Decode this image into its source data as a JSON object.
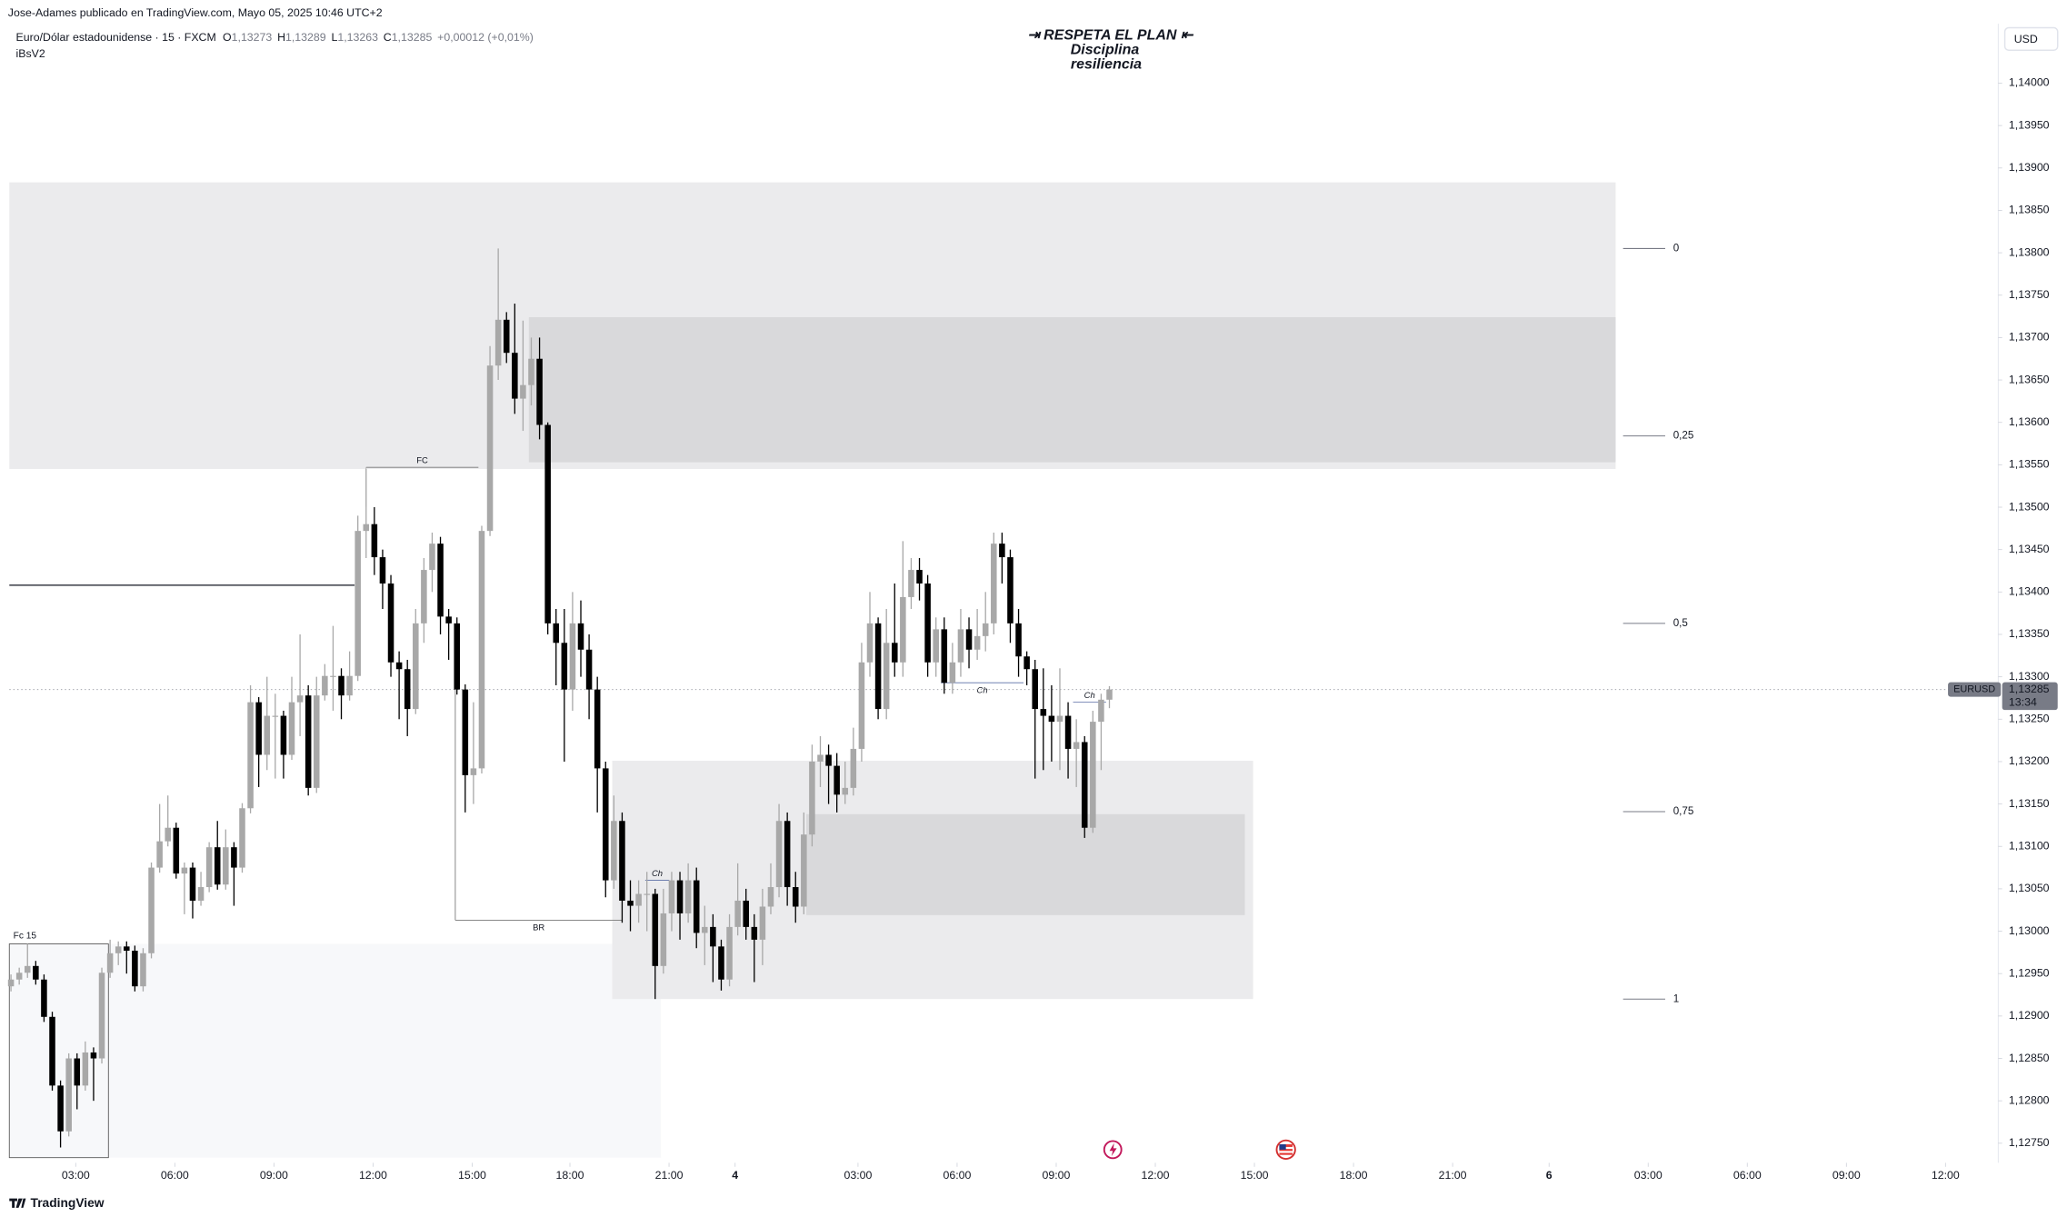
{
  "chart_data": {
    "type": "candlestick",
    "publisher": "Jose-Adames publicado en TradingView.com, Mayo 05, 2025 10:46 UTC+2",
    "title": "Euro/Dólar estadounidense · 15 · FXCM",
    "ohlc_legend": [
      {
        "name": "O",
        "label": "1,13273"
      },
      {
        "name": "H",
        "label": "1,13289"
      },
      {
        "name": "L",
        "label": "1,13263"
      },
      {
        "name": "C",
        "label": "1,13285"
      }
    ],
    "change": "+0,00012 (+0,01%)",
    "indicator": "iBsV2",
    "banner": [
      "⇥ RESPETA  EL PLAN ⇤",
      "Disciplina",
      "resiliencia"
    ],
    "currency": "USD",
    "brand": "TradingView",
    "up_color": "#a8a8a8",
    "down_color": "#000000",
    "x": [
      0,
      1,
      2,
      3,
      4,
      5,
      6,
      7,
      8,
      9,
      10,
      11,
      12,
      13,
      14,
      15,
      16,
      17,
      18,
      19,
      20,
      21,
      22,
      23,
      24,
      25,
      26,
      27,
      28,
      29,
      30,
      31,
      32,
      33,
      34,
      35,
      36,
      37,
      38,
      39,
      40,
      41,
      42,
      43,
      44,
      45,
      46,
      47,
      48,
      49,
      50,
      51,
      52,
      53,
      54,
      55,
      56,
      57,
      58,
      59,
      60,
      61,
      62,
      63,
      64,
      65,
      66,
      67,
      68,
      69,
      70,
      71,
      72,
      73,
      74,
      75,
      76,
      77,
      78,
      79,
      80,
      81,
      82,
      83,
      84,
      85,
      86,
      87,
      88,
      89,
      90,
      91,
      92,
      93,
      94,
      95,
      96,
      97,
      98,
      99,
      100,
      101,
      102,
      103,
      104,
      105,
      106,
      107,
      108,
      109,
      110,
      111,
      112,
      113,
      114,
      115,
      116,
      117,
      118,
      119,
      120,
      121,
      122,
      123,
      124,
      125,
      126,
      127,
      128,
      129,
      130,
      131,
      132,
      133
    ],
    "open": [
      1.12935,
      1.12943,
      1.12951,
      1.12959,
      1.12943,
      1.12899,
      1.12818,
      1.12764,
      1.1285,
      1.12818,
      1.12857,
      1.1285,
      1.12951,
      1.12974,
      1.12982,
      1.12977,
      1.12935,
      1.12974,
      1.13075,
      1.13106,
      1.13122,
      1.13068,
      1.13075,
      1.13036,
      1.13052,
      1.13099,
      1.13055,
      1.13099,
      1.13075,
      1.13145,
      1.1327,
      1.13208,
      1.13254,
      1.13254,
      1.13208,
      1.1327,
      1.13278,
      1.13169,
      1.13278,
      1.13301,
      1.13301,
      1.13278,
      1.13301,
      1.13472,
      1.1348,
      1.13441,
      1.1341,
      1.13317,
      1.13309,
      1.13262,
      1.13363,
      1.13426,
      1.13457,
      1.13371,
      1.13363,
      1.13285,
      1.13184,
      1.13192,
      1.13472,
      1.13667,
      1.13721,
      1.13682,
      1.13628,
      1.13644,
      1.13675,
      1.13597,
      1.13363,
      1.1334,
      1.13285,
      1.13363,
      1.13332,
      1.13285,
      1.13192,
      1.1306,
      1.1313,
      1.13036,
      1.1303,
      1.13044,
      1.13044,
      1.12959,
      1.13021,
      1.1306,
      1.13021,
      1.1306,
      1.12998,
      1.13005,
      1.12982,
      1.12943,
      1.13005,
      1.13036,
      1.13005,
      1.1299,
      1.13029,
      1.13052,
      1.1313,
      1.13052,
      1.13029,
      1.13114,
      1.132,
      1.13208,
      1.13195,
      1.13161,
      1.13169,
      1.13215,
      1.13317,
      1.13363,
      1.13262,
      1.1334,
      1.13317,
      1.13394,
      1.13426,
      1.1341,
      1.13317,
      1.13356,
      1.13293,
      1.13317,
      1.13356,
      1.13332,
      1.13348,
      1.13363,
      1.13457,
      1.13441,
      1.13363,
      1.13324,
      1.13309,
      1.13262,
      1.13254,
      1.13247,
      1.13254,
      1.13215,
      1.13223,
      1.13122,
      1.13247,
      1.13273
    ],
    "high": [
      1.12949,
      1.12957,
      1.12985,
      1.12965,
      1.12949,
      1.12905,
      1.12824,
      1.12856,
      1.12856,
      1.1287,
      1.12863,
      1.12957,
      1.1299,
      1.12988,
      1.12988,
      1.12983,
      1.1298,
      1.13081,
      1.1315,
      1.1316,
      1.13128,
      1.13081,
      1.13081,
      1.1307,
      1.13105,
      1.1313,
      1.1312,
      1.13105,
      1.13151,
      1.1329,
      1.13276,
      1.133,
      1.1328,
      1.1326,
      1.133,
      1.1335,
      1.1329,
      1.133,
      1.13315,
      1.1336,
      1.1331,
      1.1333,
      1.1349,
      1.13545,
      1.135,
      1.1345,
      1.1342,
      1.1333,
      1.1332,
      1.1338,
      1.1344,
      1.1347,
      1.13465,
      1.1338,
      1.1337,
      1.13291,
      1.1327,
      1.13478,
      1.1369,
      1.13805,
      1.1373,
      1.1374,
      1.1372,
      1.137,
      1.137,
      1.136,
      1.1338,
      1.1338,
      1.134,
      1.1339,
      1.1335,
      1.133,
      1.132,
      1.1316,
      1.1314,
      1.1306,
      1.1306,
      1.1307,
      1.1305,
      1.1305,
      1.1307,
      1.1307,
      1.1308,
      1.13075,
      1.1303,
      1.1302,
      1.1299,
      1.1302,
      1.1308,
      1.1305,
      1.1302,
      1.1305,
      1.1308,
      1.1315,
      1.1314,
      1.1307,
      1.1314,
      1.1322,
      1.1323,
      1.1322,
      1.1321,
      1.132,
      1.1324,
      1.1334,
      1.134,
      1.1337,
      1.1338,
      1.1341,
      1.1346,
      1.1344,
      1.1344,
      1.1342,
      1.1337,
      1.1337,
      1.1334,
      1.1338,
      1.1337,
      1.1338,
      1.134,
      1.1347,
      1.1347,
      1.1345,
      1.1338,
      1.1333,
      1.1332,
      1.1331,
      1.1329,
      1.1331,
      1.1327,
      1.1325,
      1.1323,
      1.1326,
      1.1328,
      1.13289
    ],
    "low": [
      1.12929,
      1.12937,
      1.12945,
      1.12937,
      1.12893,
      1.12812,
      1.12745,
      1.12758,
      1.1279,
      1.12812,
      1.128,
      1.12844,
      1.12945,
      1.1296,
      1.1295,
      1.12929,
      1.12929,
      1.12968,
      1.13069,
      1.131,
      1.13062,
      1.1302,
      1.13015,
      1.1303,
      1.13046,
      1.13049,
      1.13049,
      1.1303,
      1.13069,
      1.13139,
      1.1317,
      1.1319,
      1.1318,
      1.1318,
      1.13202,
      1.1323,
      1.1316,
      1.13163,
      1.13272,
      1.1326,
      1.1325,
      1.13272,
      1.13295,
      1.1344,
      1.1342,
      1.1338,
      1.133,
      1.1325,
      1.1323,
      1.13256,
      1.1334,
      1.134,
      1.1335,
      1.1332,
      1.13279,
      1.1314,
      1.1315,
      1.13186,
      1.13466,
      1.1365,
      1.1367,
      1.1361,
      1.1359,
      1.1362,
      1.1358,
      1.1335,
      1.1329,
      1.132,
      1.1326,
      1.133,
      1.1325,
      1.1314,
      1.1304,
      1.1305,
      1.1301,
      1.13,
      1.1301,
      1.13,
      1.1292,
      1.1295,
      1.13,
      1.1299,
      1.1301,
      1.1298,
      1.1296,
      1.1294,
      1.1293,
      1.12935,
      1.12995,
      1.1299,
      1.1294,
      1.1296,
      1.1302,
      1.1304,
      1.1303,
      1.1301,
      1.1302,
      1.131,
      1.1317,
      1.1315,
      1.1314,
      1.1315,
      1.1316,
      1.132,
      1.133,
      1.1325,
      1.1325,
      1.133,
      1.133,
      1.1338,
      1.1339,
      1.133,
      1.133,
      1.1328,
      1.1328,
      1.133,
      1.1331,
      1.1332,
      1.1333,
      1.1335,
      1.1341,
      1.1334,
      1.133,
      1.1329,
      1.1318,
      1.1319,
      1.132,
      1.1319,
      1.1318,
      1.1317,
      1.1311,
      1.13116,
      1.1319,
      1.13263
    ],
    "close": [
      1.12943,
      1.12951,
      1.12959,
      1.12943,
      1.12899,
      1.12818,
      1.12764,
      1.1285,
      1.12818,
      1.12857,
      1.1285,
      1.12951,
      1.12974,
      1.12982,
      1.12977,
      1.12935,
      1.12974,
      1.13075,
      1.13106,
      1.13122,
      1.13068,
      1.13075,
      1.13036,
      1.13052,
      1.13099,
      1.13055,
      1.13099,
      1.13075,
      1.13145,
      1.1327,
      1.13208,
      1.13254,
      1.13254,
      1.13208,
      1.1327,
      1.13278,
      1.13169,
      1.13278,
      1.13301,
      1.13301,
      1.13278,
      1.13301,
      1.13472,
      1.1348,
      1.13441,
      1.1341,
      1.13317,
      1.13309,
      1.13262,
      1.13363,
      1.13426,
      1.13457,
      1.13371,
      1.13363,
      1.13285,
      1.13184,
      1.13192,
      1.13472,
      1.13667,
      1.13721,
      1.13682,
      1.13628,
      1.13644,
      1.13675,
      1.13597,
      1.13363,
      1.1334,
      1.13285,
      1.13363,
      1.13332,
      1.13285,
      1.13192,
      1.1306,
      1.1313,
      1.13036,
      1.1303,
      1.13044,
      1.13044,
      1.12959,
      1.13021,
      1.1306,
      1.13021,
      1.1306,
      1.12998,
      1.13005,
      1.12982,
      1.12943,
      1.13005,
      1.13036,
      1.13005,
      1.1299,
      1.13029,
      1.13052,
      1.1313,
      1.13052,
      1.13029,
      1.13114,
      1.132,
      1.13208,
      1.13195,
      1.13161,
      1.13169,
      1.13215,
      1.13317,
      1.13363,
      1.13262,
      1.1334,
      1.13317,
      1.13394,
      1.13426,
      1.1341,
      1.13317,
      1.13356,
      1.13293,
      1.13317,
      1.13356,
      1.13332,
      1.13348,
      1.13363,
      1.13457,
      1.13441,
      1.13363,
      1.13324,
      1.13309,
      1.13262,
      1.13254,
      1.13247,
      1.13254,
      1.13215,
      1.13223,
      1.13122,
      1.13247,
      1.13273,
      1.13285
    ],
    "xlim": [
      -0.2,
      240.3
    ],
    "ylim": [
      1.1273,
      1.1407
    ],
    "xticks": [
      {
        "value": 7.84,
        "label": "03:00"
      },
      {
        "value": 19.84,
        "label": "06:00"
      },
      {
        "value": 31.84,
        "label": "09:00"
      },
      {
        "value": 43.84,
        "label": "12:00"
      },
      {
        "value": 55.84,
        "label": "15:00"
      },
      {
        "value": 67.68,
        "label": "18:00"
      },
      {
        "value": 79.68,
        "label": "21:00"
      },
      {
        "value": 87.68,
        "label": "4"
      },
      {
        "value": 102.56,
        "label": "03:00"
      },
      {
        "value": 114.56,
        "label": "06:00"
      },
      {
        "value": 126.56,
        "label": "09:00"
      },
      {
        "value": 138.56,
        "label": "12:00"
      },
      {
        "value": 150.56,
        "label": "15:00"
      },
      {
        "value": 162.56,
        "label": "18:00"
      },
      {
        "value": 174.56,
        "label": "21:00"
      },
      {
        "value": 186.24,
        "label": "6"
      },
      {
        "value": 198.24,
        "label": "03:00"
      },
      {
        "value": 210.24,
        "label": "06:00"
      },
      {
        "value": 222.24,
        "label": "09:00"
      },
      {
        "value": 234.24,
        "label": "12:00"
      }
    ],
    "yticks": [
      {
        "value": 1.1275,
        "label": "1,12750"
      },
      {
        "value": 1.128,
        "label": "1,12800"
      },
      {
        "value": 1.1285,
        "label": "1,12850"
      },
      {
        "value": 1.129,
        "label": "1,12900"
      },
      {
        "value": 1.1295,
        "label": "1,12950"
      },
      {
        "value": 1.13,
        "label": "1,13000"
      },
      {
        "value": 1.1305,
        "label": "1,13050"
      },
      {
        "value": 1.131,
        "label": "1,13100"
      },
      {
        "value": 1.1315,
        "label": "1,13150"
      },
      {
        "value": 1.132,
        "label": "1,13200"
      },
      {
        "value": 1.1325,
        "label": "1,13250"
      },
      {
        "value": 1.133,
        "label": "1,13300"
      },
      {
        "value": 1.1335,
        "label": "1,13350"
      },
      {
        "value": 1.134,
        "label": "1,13400"
      },
      {
        "value": 1.1345,
        "label": "1,13450"
      },
      {
        "value": 1.135,
        "label": "1,13500"
      },
      {
        "value": 1.1355,
        "label": "1,13550"
      },
      {
        "value": 1.136,
        "label": "1,13600"
      },
      {
        "value": 1.1365,
        "label": "1,13650"
      },
      {
        "value": 1.137,
        "label": "1,13700"
      },
      {
        "value": 1.1375,
        "label": "1,13750"
      },
      {
        "value": 1.138,
        "label": "1,13800"
      },
      {
        "value": 1.1385,
        "label": "1,13850"
      },
      {
        "value": 1.139,
        "label": "1,13900"
      },
      {
        "value": 1.1395,
        "label": "1,13950"
      },
      {
        "value": 1.14,
        "label": "1,14000"
      }
    ],
    "zones": [
      {
        "x": [
          -0.2,
          194.3
        ],
        "y": [
          1.13545,
          1.13883
        ],
        "color": "#ebebed"
      },
      {
        "x": [
          62.7,
          194.3
        ],
        "y": [
          1.13553,
          1.13724
        ],
        "color": "#d9d9db"
      },
      {
        "x": [
          -0.2,
          78.7
        ],
        "y": [
          1.12733,
          1.12985
        ],
        "color": "#f7f8fa"
      },
      {
        "x": [
          72.8,
          150.4
        ],
        "y": [
          1.1292,
          1.13201
        ],
        "color": "#ebebed"
      },
      {
        "x": [
          96.3,
          149.4
        ],
        "y": [
          1.13019,
          1.13138
        ],
        "color": "#d9d9db"
      }
    ],
    "levels": [
      {
        "x": [
          -0.2,
          41.6
        ],
        "price": 1.13408
      },
      {
        "text": "FC",
        "x": [
          43.0,
          56.6
        ],
        "price": 1.13547
      },
      {
        "text": "BR",
        "x": [
          53.8,
          74.0
        ],
        "price": 1.13013
      },
      {
        "text": "Ch",
        "x": [
          76.8,
          79.7
        ],
        "price": 1.1306
      },
      {
        "text": "Ch",
        "x": [
          112.6,
          122.6
        ],
        "price": 1.13293
      },
      {
        "text": "Ch",
        "x": [
          128.6,
          132.6
        ],
        "price": 1.1327
      }
    ],
    "box": {
      "text": "Fc 15",
      "x": [
        -0.2,
        11.8
      ],
      "y": [
        1.12733,
        1.12985
      ]
    },
    "fib": {
      "x": [
        195.2,
        200.3
      ],
      "levels": [
        {
          "value": 0,
          "label": "0"
        },
        {
          "value": 0.25,
          "label": "0,25"
        },
        {
          "value": 0.5,
          "label": "0,5"
        },
        {
          "value": 0.75,
          "label": "0,75"
        },
        {
          "value": 1,
          "label": "1"
        }
      ],
      "prices": [
        1.13805,
        1.13584,
        1.13363,
        1.13141,
        1.1292
      ]
    },
    "last": {
      "symbol": "EURUSD",
      "label": "1,13285",
      "countdown": "13:34"
    }
  }
}
